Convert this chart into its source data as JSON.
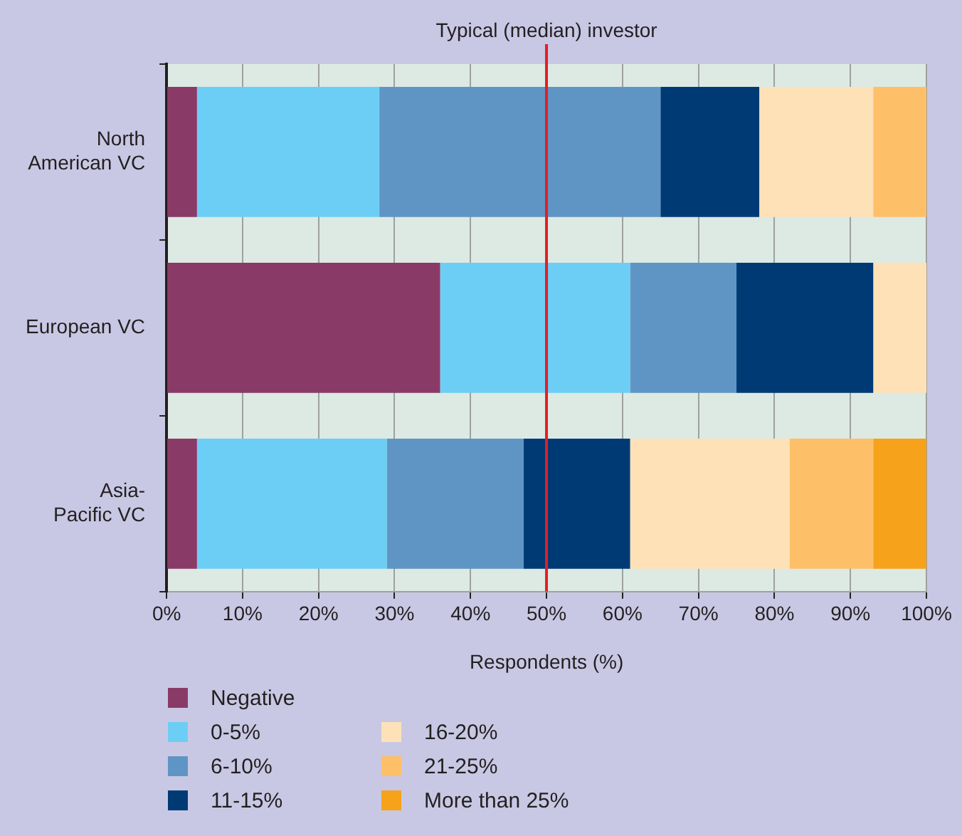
{
  "chart_data": {
    "type": "bar",
    "orientation": "horizontal",
    "stacked": true,
    "xlabel": "Respondents (%)",
    "categories": [
      "North American VC",
      "European VC",
      "Asia-Pacific VC"
    ],
    "series": [
      {
        "name": "Negative",
        "color": "#8a3a67",
        "values": [
          4,
          36,
          4
        ]
      },
      {
        "name": "0-5%",
        "color": "#6dcef5",
        "values": [
          24,
          25,
          25
        ]
      },
      {
        "name": "6-10%",
        "color": "#5f95c4",
        "values": [
          37,
          14,
          18
        ]
      },
      {
        "name": "11-15%",
        "color": "#003a75",
        "values": [
          13,
          18,
          14
        ]
      },
      {
        "name": "16-20%",
        "color": "#ffe1b8",
        "values": [
          15,
          7,
          21
        ]
      },
      {
        "name": "21-25%",
        "color": "#fdc068",
        "values": [
          7,
          0,
          11
        ]
      },
      {
        "name": "More than 25%",
        "color": "#f7a21b",
        "values": [
          0,
          0,
          7
        ]
      }
    ],
    "xlim": [
      0,
      100
    ],
    "xticks": [
      {
        "value": 0,
        "label": "0%"
      },
      {
        "value": 10,
        "label": "10%"
      },
      {
        "value": 20,
        "label": "20%"
      },
      {
        "value": 30,
        "label": "30%"
      },
      {
        "value": 40,
        "label": "40%"
      },
      {
        "value": 50,
        "label": "50%"
      },
      {
        "value": 60,
        "label": "60%"
      },
      {
        "value": 70,
        "label": "70%"
      },
      {
        "value": 80,
        "label": "80%"
      },
      {
        "value": 90,
        "label": "90%"
      },
      {
        "value": 100,
        "label": "100%"
      }
    ],
    "grid": "x",
    "legend": "bottom left",
    "ref_lines": [
      {
        "axis": "x",
        "value": 50,
        "label": "Typical (median) investor",
        "color": "#e31e24"
      }
    ]
  }
}
